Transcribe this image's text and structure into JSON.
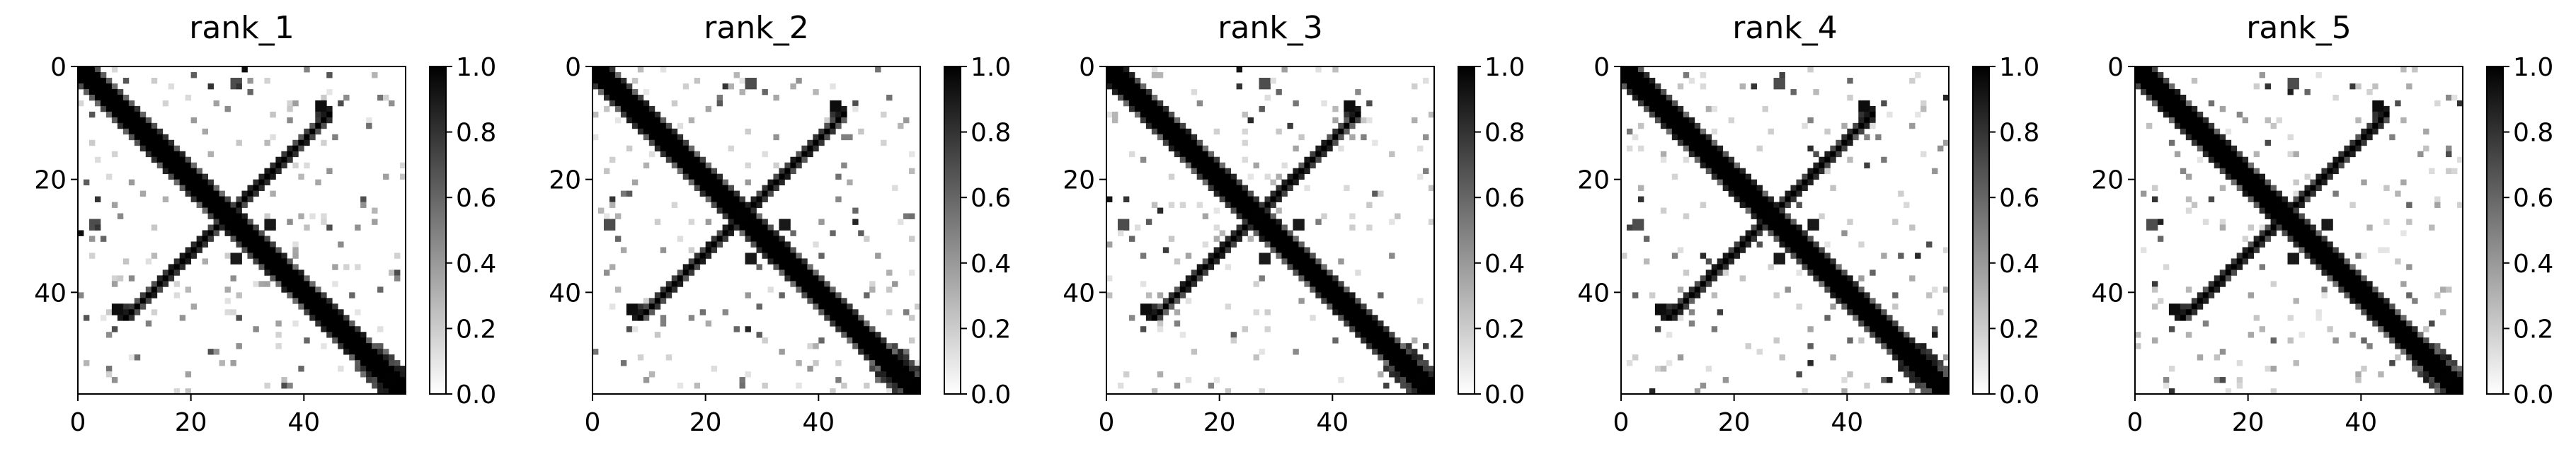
{
  "chart_data": [
    {
      "type": "heatmap",
      "title": "rank_1",
      "colormap": "Greys",
      "vlim": [
        0,
        1
      ],
      "size": 58,
      "xticks": [
        0,
        20,
        40
      ],
      "yticks": [
        0,
        20,
        40
      ],
      "colorbar_ticks": [
        "0.0",
        "0.2",
        "0.4",
        "0.6",
        "0.8",
        "1.0"
      ]
    },
    {
      "type": "heatmap",
      "title": "rank_2",
      "colormap": "Greys",
      "vlim": [
        0,
        1
      ],
      "size": 58,
      "xticks": [
        0,
        20,
        40
      ],
      "yticks": [
        0,
        20,
        40
      ],
      "colorbar_ticks": [
        "0.0",
        "0.2",
        "0.4",
        "0.6",
        "0.8",
        "1.0"
      ]
    },
    {
      "type": "heatmap",
      "title": "rank_3",
      "colormap": "Greys",
      "vlim": [
        0,
        1
      ],
      "size": 58,
      "xticks": [
        0,
        20,
        40
      ],
      "yticks": [
        0,
        20,
        40
      ],
      "colorbar_ticks": [
        "0.0",
        "0.2",
        "0.4",
        "0.6",
        "0.8",
        "1.0"
      ]
    },
    {
      "type": "heatmap",
      "title": "rank_4",
      "colormap": "Greys",
      "vlim": [
        0,
        1
      ],
      "size": 58,
      "xticks": [
        0,
        20,
        40
      ],
      "yticks": [
        0,
        20,
        40
      ],
      "colorbar_ticks": [
        "0.0",
        "0.2",
        "0.4",
        "0.6",
        "0.8",
        "1.0"
      ]
    },
    {
      "type": "heatmap",
      "title": "rank_5",
      "colormap": "Greys",
      "vlim": [
        0,
        1
      ],
      "size": 58,
      "xticks": [
        0,
        20,
        40
      ],
      "yticks": [
        0,
        20,
        40
      ],
      "colorbar_ticks": [
        "0.0",
        "0.2",
        "0.4",
        "0.6",
        "0.8",
        "1.0"
      ]
    }
  ]
}
